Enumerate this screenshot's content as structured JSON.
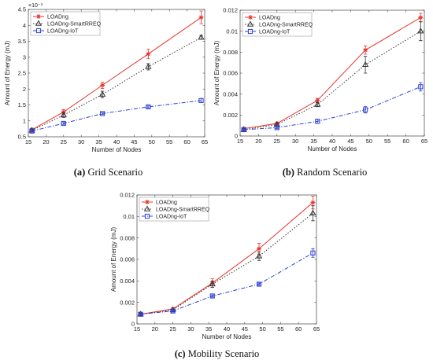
{
  "figure": {
    "captions": [
      {
        "tag": "(a)",
        "text": "Grid Scenario"
      },
      {
        "tag": "(b)",
        "text": "Random Scenario"
      },
      {
        "tag": "(c)",
        "text": "Mobility Scenario"
      }
    ]
  },
  "legend_markers": {
    "LOADng": "asterisk",
    "LOADng-SmartRREQ": "triangle",
    "LOADng-IoT": "square"
  },
  "colors": {
    "LOADng": "#e8342c",
    "LOADng-SmartRREQ": "#333333",
    "LOADng-IoT": "#2a3fd8"
  },
  "chart_data": [
    {
      "type": "line",
      "xlabel": "Number of Nodes",
      "ylabel": "Amount of Energy (mJ)",
      "exponent_label": "×10⁻³",
      "xlim": [
        15,
        65
      ],
      "ylim": [
        0.5,
        4.5
      ],
      "xticks": [
        15,
        20,
        25,
        30,
        35,
        40,
        45,
        50,
        55,
        60,
        65
      ],
      "yticks": [
        0.5,
        1,
        1.5,
        2,
        2.5,
        3,
        3.5,
        4,
        4.5
      ],
      "ytick_labels": [
        "0.5",
        "1",
        "1.5",
        "2",
        "2.5",
        "3",
        "3.5",
        "4",
        "4.5"
      ],
      "legend_position": "top-left",
      "x": [
        16,
        25,
        36,
        49,
        64
      ],
      "series": [
        {
          "name": "LOADng",
          "values": [
            0.72,
            1.28,
            2.12,
            3.1,
            4.25
          ],
          "errors": [
            0.05,
            0.08,
            0.1,
            0.15,
            0.2
          ]
        },
        {
          "name": "LOADng-SmartRREQ",
          "values": [
            0.7,
            1.18,
            1.83,
            2.7,
            3.62
          ],
          "errors": [
            0.04,
            0.07,
            0.1,
            0.1,
            0.06
          ]
        },
        {
          "name": "LOADng-IoT",
          "values": [
            0.68,
            0.92,
            1.23,
            1.44,
            1.64
          ],
          "errors": [
            0.03,
            0.03,
            0.03,
            0.03,
            0.06
          ]
        }
      ]
    },
    {
      "type": "line",
      "xlabel": "Number of Nodes",
      "ylabel": "Amount of Energy (mJ)",
      "xlim": [
        15,
        65
      ],
      "ylim": [
        0,
        0.012
      ],
      "xticks": [
        15,
        20,
        25,
        30,
        35,
        40,
        45,
        50,
        55,
        60,
        65
      ],
      "yticks": [
        0,
        0.002,
        0.004,
        0.006,
        0.008,
        0.01,
        0.012
      ],
      "ytick_labels": [
        "0",
        "0.002",
        "0.004",
        "0.006",
        "0.008",
        "0.01",
        "0.012"
      ],
      "legend_position": "top-left",
      "x": [
        16,
        25,
        36,
        49,
        64
      ],
      "series": [
        {
          "name": "LOADng",
          "values": [
            0.0007,
            0.0012,
            0.0034,
            0.0082,
            0.0113
          ],
          "errors": [
            0.0001,
            0.0001,
            0.0002,
            0.0004,
            0.0004
          ]
        },
        {
          "name": "LOADng-SmartRREQ",
          "values": [
            0.0006,
            0.0011,
            0.003,
            0.0068,
            0.01
          ],
          "errors": [
            0.0001,
            0.0001,
            0.0002,
            0.0008,
            0.0009
          ]
        },
        {
          "name": "LOADng-IoT",
          "values": [
            0.0006,
            0.0008,
            0.0014,
            0.0025,
            0.0047
          ],
          "errors": [
            0.0001,
            0.0001,
            0.0002,
            0.0003,
            0.0004
          ]
        }
      ]
    },
    {
      "type": "line",
      "xlabel": "Number of Nodes",
      "ylabel": "Amount of Energy (mJ)",
      "xlim": [
        15,
        65
      ],
      "ylim": [
        0,
        0.012
      ],
      "xticks": [
        15,
        20,
        25,
        30,
        35,
        40,
        45,
        50,
        55,
        60,
        65
      ],
      "yticks": [
        0,
        0.002,
        0.004,
        0.006,
        0.008,
        0.01,
        0.012
      ],
      "ytick_labels": [
        "0",
        "0.002",
        "0.004",
        "0.006",
        "0.008",
        "0.01",
        "0.012"
      ],
      "legend_position": "top-left",
      "x": [
        16,
        25,
        36,
        49,
        64
      ],
      "series": [
        {
          "name": "LOADng",
          "values": [
            0.0009,
            0.0014,
            0.0038,
            0.007,
            0.0113
          ],
          "errors": [
            0.0001,
            0.0001,
            0.0004,
            0.0005,
            0.0006
          ]
        },
        {
          "name": "LOADng-SmartRREQ",
          "values": [
            0.0009,
            0.0013,
            0.0037,
            0.0063,
            0.0103
          ],
          "errors": [
            0.0001,
            0.0001,
            0.0003,
            0.0004,
            0.0007
          ]
        },
        {
          "name": "LOADng-IoT",
          "values": [
            0.0009,
            0.0012,
            0.0026,
            0.0037,
            0.0066
          ],
          "errors": [
            0.0001,
            0.0001,
            0.0001,
            0.0001,
            0.0004
          ]
        }
      ]
    }
  ]
}
